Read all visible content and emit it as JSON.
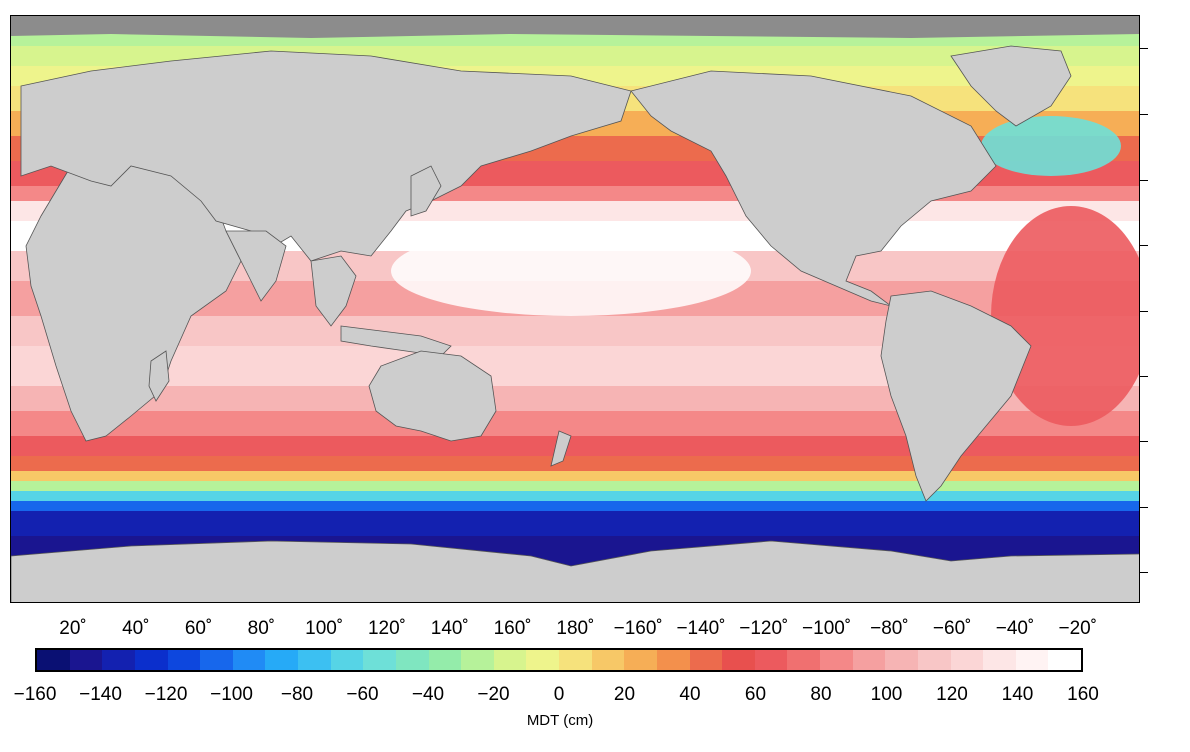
{
  "map": {
    "title": "",
    "longitude_labels": [
      "20˚",
      "40˚",
      "60˚",
      "80˚",
      "100˚",
      "120˚",
      "140˚",
      "160˚",
      "180˚",
      "−160˚",
      "−140˚",
      "−120˚",
      "−100˚",
      "−80˚",
      "−60˚",
      "−40˚",
      "−20˚"
    ],
    "colors": {
      "land": "#cdcdcd",
      "sea_ice_gray": "#8c8c8c",
      "grid": "#000000"
    }
  },
  "colorbar": {
    "title": "MDT (cm)",
    "tick_labels": [
      "−160",
      "−140",
      "−120",
      "−100",
      "−80",
      "−60",
      "−40",
      "−20",
      "0",
      "20",
      "40",
      "60",
      "80",
      "100",
      "120",
      "140",
      "160"
    ],
    "range": [
      -160,
      160
    ],
    "step": 10,
    "colors": [
      "#0a1073",
      "#1a1590",
      "#1321b0",
      "#0b2fcc",
      "#0d47de",
      "#1767ec",
      "#208bf5",
      "#26aaf7",
      "#3cc0f2",
      "#56d4e6",
      "#6ee0d8",
      "#7fe6c0",
      "#94ecaa",
      "#b6f29a",
      "#d7f48e",
      "#eef48c",
      "#f6e27c",
      "#f7c867",
      "#f6ae56",
      "#f3904c",
      "#ec6b4d",
      "#e8504e",
      "#ec5a5e",
      "#f07070",
      "#f48888",
      "#f5a0a0",
      "#f6b4b4",
      "#f8c6c6",
      "#fbd6d6",
      "#fde6e6",
      "#fff3f3",
      "#ffffff"
    ]
  }
}
